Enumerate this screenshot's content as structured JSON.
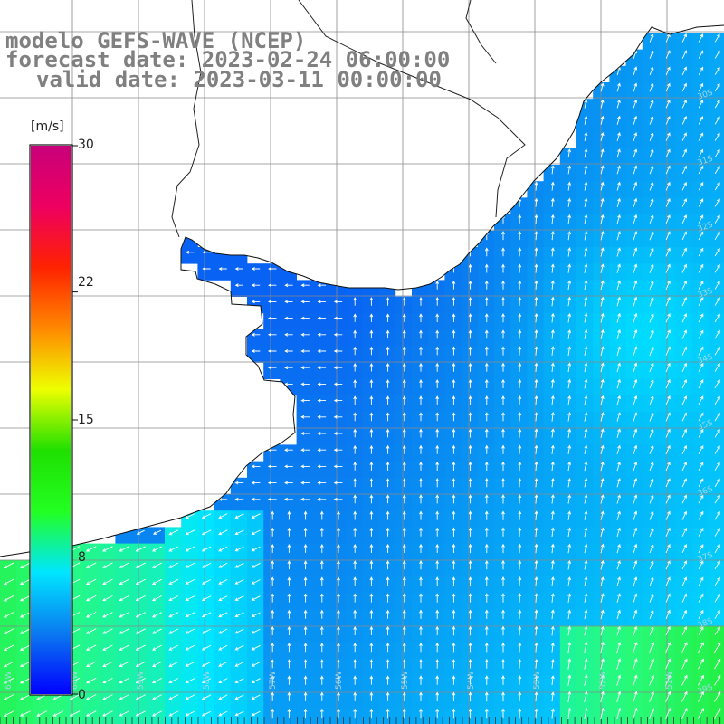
{
  "title": {
    "line1": "modelo GEFS-WAVE (NCEP)",
    "line2": "forecast date: 2023-02-24 06:00:00",
    "line3": "valid date: 2023-03-11 00:00:00"
  },
  "colorbar": {
    "unit": "[m/s]",
    "ticks": [
      "30",
      "22",
      "15",
      "8",
      "0"
    ],
    "tick_values": [
      30,
      22,
      15,
      8,
      0
    ],
    "min": 0,
    "max": 30,
    "colors": [
      "#0000ff",
      "#0a7af0",
      "#00e6ff",
      "#22ff22",
      "#1fe000",
      "#eeff00",
      "#ff8800",
      "#ff2200",
      "#ee0060",
      "#c8007a"
    ]
  },
  "grid": {
    "lat_labels": [
      "30S",
      "31S",
      "32S",
      "33S",
      "34S",
      "35S",
      "36S",
      "37S",
      "38S",
      "39S"
    ],
    "lon_labels": [
      "61W",
      "60W",
      "59W",
      "58W",
      "57W",
      "56W",
      "55W",
      "54W",
      "53W",
      "52W",
      "51W"
    ]
  },
  "legend_icons": [
    "land-mask",
    "coastline",
    "wind-arrows"
  ]
}
